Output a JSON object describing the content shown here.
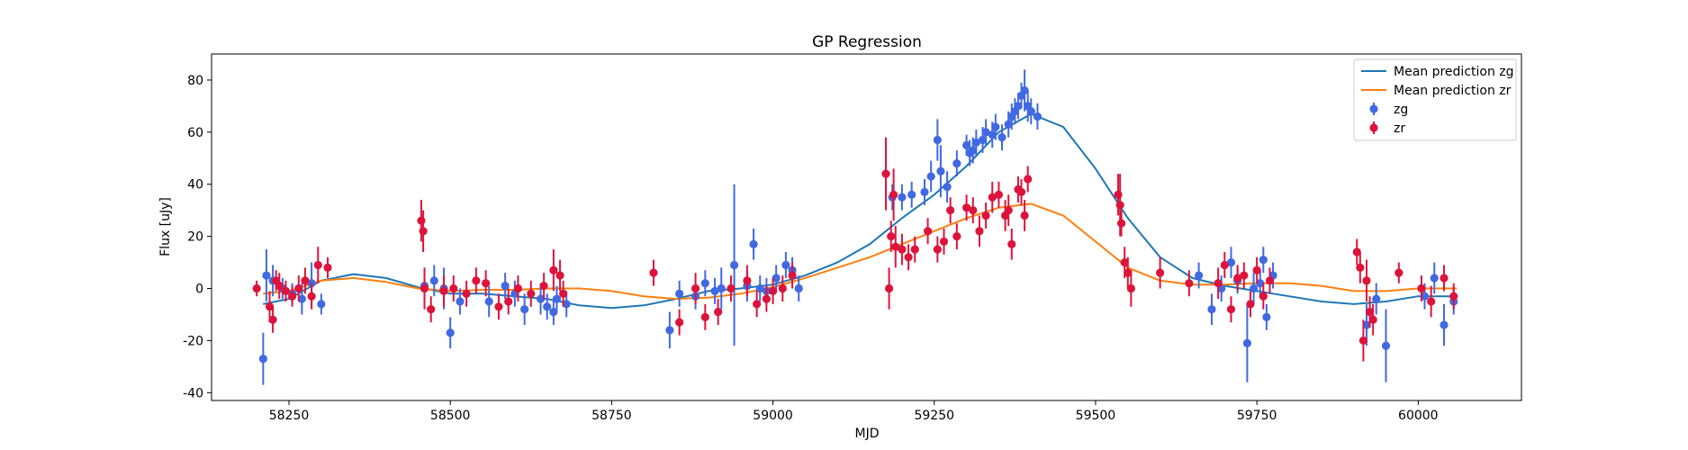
{
  "chart_data": {
    "type": "scatter",
    "title": "GP Regression",
    "xlabel": "MJD",
    "ylabel": "Flux [uJy]",
    "xlim": [
      58130,
      60160
    ],
    "ylim": [
      -43,
      90
    ],
    "xticks": [
      58250,
      58500,
      58750,
      59000,
      59250,
      59500,
      59750,
      60000
    ],
    "yticks": [
      -40,
      -20,
      0,
      20,
      40,
      60,
      80
    ],
    "grid": false,
    "legend_position": "top-right",
    "series": [
      {
        "name": "Mean prediction zg",
        "kind": "line",
        "color": "#1f77b4",
        "x": [
          58210,
          58250,
          58300,
          58350,
          58400,
          58450,
          58500,
          58550,
          58600,
          58650,
          58700,
          58750,
          58800,
          58850,
          58900,
          58950,
          59000,
          59050,
          59100,
          59150,
          59200,
          59250,
          59300,
          59350,
          59400,
          59450,
          59500,
          59550,
          59600,
          59650,
          59700,
          59750,
          59800,
          59850,
          59900,
          59950,
          60000,
          60060
        ],
        "y": [
          -6,
          -4,
          3,
          5.5,
          4,
          0.5,
          -2,
          -2,
          -3,
          -4,
          -6.5,
          -7.5,
          -6.5,
          -4,
          -1,
          0,
          1.5,
          5,
          10,
          17,
          27,
          36,
          47,
          60,
          67,
          62,
          46,
          27,
          12,
          4,
          1,
          -1,
          -3,
          -5,
          -6,
          -5,
          -3,
          -3
        ]
      },
      {
        "name": "Mean prediction zr",
        "kind": "line",
        "color": "#ff7f0e",
        "x": [
          58210,
          58250,
          58300,
          58350,
          58400,
          58450,
          58500,
          58550,
          58600,
          58650,
          58700,
          58750,
          58800,
          58850,
          58900,
          58950,
          59000,
          59050,
          59100,
          59150,
          59200,
          59250,
          59300,
          59350,
          59400,
          59450,
          59500,
          59550,
          59600,
          59650,
          59700,
          59750,
          59800,
          59850,
          59900,
          59950,
          60000,
          60060
        ],
        "y": [
          -2,
          -1,
          3,
          4,
          2.5,
          0,
          -1,
          -0.5,
          -0.5,
          0,
          0,
          -1,
          -3,
          -4,
          -3.5,
          -2,
          0.5,
          4,
          8,
          12,
          17,
          22,
          27,
          31,
          32.5,
          28,
          18,
          8,
          3,
          1.5,
          1.5,
          2,
          2,
          1,
          -1,
          -1,
          0,
          0
        ]
      },
      {
        "name": "zg",
        "kind": "errorbar",
        "color": "#4169e1",
        "x": [
          58210,
          58215,
          58225,
          58240,
          58255,
          58270,
          58285,
          58300,
          58460,
          58475,
          58490,
          58500,
          58515,
          58560,
          58585,
          58600,
          58615,
          58640,
          58650,
          58660,
          58665,
          58680,
          58840,
          58855,
          58880,
          58895,
          58910,
          58920,
          58940,
          58960,
          58970,
          58980,
          58990,
          59005,
          59020,
          59030,
          59040,
          59185,
          59200,
          59215,
          59235,
          59245,
          59255,
          59260,
          59270,
          59285,
          59300,
          59305,
          59310,
          59315,
          59325,
          59330,
          59340,
          59345,
          59355,
          59365,
          59370,
          59375,
          59380,
          59385,
          59390,
          59395,
          59400,
          59410,
          59660,
          59680,
          59695,
          59710,
          59720,
          59735,
          59745,
          59755,
          59760,
          59765,
          59775,
          59920,
          59935,
          59950,
          60010,
          60025,
          60040,
          60055
        ],
        "y": [
          -27,
          5,
          3,
          0,
          -2,
          -4,
          2,
          -6,
          1,
          3,
          0,
          -17,
          -5,
          -5,
          1,
          -2,
          -8,
          -4,
          -7,
          -9,
          -4,
          -6,
          -16,
          -2,
          -3,
          2,
          -1,
          0,
          9,
          1,
          17,
          0,
          -1,
          4,
          9,
          7,
          0,
          35,
          35,
          36,
          37,
          43,
          57,
          45,
          39,
          48,
          55,
          52,
          53,
          56,
          57,
          60,
          59,
          62,
          58,
          63,
          66,
          68,
          70,
          74,
          76,
          70,
          68,
          66,
          5,
          -8,
          0,
          10,
          3,
          -21,
          0,
          2,
          11,
          -11,
          5,
          -14,
          -4,
          -22,
          -3,
          4,
          -14,
          -5
        ],
        "yerr": [
          10,
          10,
          6,
          4,
          4,
          6,
          8,
          4,
          5,
          6,
          8,
          6,
          5,
          6,
          5,
          5,
          6,
          6,
          5,
          5,
          5,
          5,
          7,
          5,
          5,
          5,
          5,
          8,
          31,
          6,
          6,
          5,
          5,
          5,
          5,
          5,
          5,
          5,
          5,
          5,
          5,
          6,
          8,
          10,
          6,
          5,
          4,
          5,
          5,
          5,
          5,
          5,
          5,
          5,
          5,
          5,
          5,
          5,
          5,
          5,
          8,
          6,
          5,
          5,
          5,
          6,
          5,
          6,
          5,
          15,
          6,
          5,
          5,
          5,
          5,
          8,
          6,
          14,
          5,
          6,
          8,
          5
        ]
      },
      {
        "name": "zr",
        "kind": "errorbar",
        "color": "#dc143c",
        "x": [
          58200,
          58220,
          58225,
          58230,
          58235,
          58245,
          58255,
          58265,
          58275,
          58285,
          58295,
          58310,
          58455,
          58458,
          58460,
          58470,
          58490,
          58505,
          58525,
          58540,
          58555,
          58575,
          58590,
          58605,
          58625,
          58645,
          58660,
          58670,
          58675,
          58815,
          58855,
          58880,
          58895,
          58915,
          58935,
          58960,
          58975,
          58990,
          59000,
          59015,
          59030,
          59175,
          59180,
          59183,
          59187,
          59190,
          59200,
          59210,
          59220,
          59240,
          59255,
          59265,
          59275,
          59285,
          59300,
          59310,
          59320,
          59330,
          59340,
          59350,
          59360,
          59365,
          59370,
          59380,
          59385,
          59390,
          59395,
          59535,
          59538,
          59540,
          59545,
          59550,
          59555,
          59600,
          59645,
          59690,
          59700,
          59710,
          59720,
          59730,
          59740,
          59750,
          59760,
          59770,
          59905,
          59910,
          59915,
          59920,
          59925,
          59930,
          59970,
          60005,
          60020,
          60040,
          60055
        ],
        "y": [
          0,
          -7,
          -12,
          3,
          1,
          -1,
          -3,
          0,
          3,
          -3,
          9,
          8,
          26,
          22,
          0,
          -8,
          -1,
          0,
          -2,
          3,
          2,
          -7,
          -5,
          0,
          -2,
          1,
          7,
          5,
          -2,
          6,
          -13,
          0,
          -11,
          -9,
          0,
          3,
          -6,
          -4,
          -1,
          0,
          5,
          44,
          0,
          20,
          36,
          16,
          15,
          12,
          15,
          22,
          15,
          18,
          30,
          20,
          31,
          30,
          22,
          28,
          35,
          36,
          28,
          30,
          17,
          38,
          37,
          28,
          42,
          36,
          32,
          25,
          10,
          6,
          0,
          6,
          2,
          2,
          9,
          -8,
          4,
          5,
          -6,
          7,
          -3,
          3,
          14,
          8,
          -20,
          3,
          -9,
          -12,
          6,
          0,
          -5,
          4,
          -3
        ],
        "yerr": [
          3,
          6,
          5,
          4,
          5,
          4,
          4,
          5,
          5,
          5,
          7,
          4,
          8,
          8,
          8,
          5,
          6,
          5,
          5,
          5,
          5,
          5,
          5,
          5,
          5,
          5,
          8,
          6,
          5,
          5,
          5,
          6,
          5,
          5,
          5,
          6,
          5,
          5,
          5,
          5,
          5,
          14,
          8,
          6,
          10,
          8,
          6,
          5,
          5,
          5,
          5,
          5,
          5,
          5,
          5,
          5,
          6,
          5,
          6,
          5,
          6,
          6,
          6,
          5,
          5,
          6,
          5,
          8,
          12,
          5,
          6,
          6,
          7,
          6,
          5,
          6,
          5,
          5,
          5,
          5,
          5,
          5,
          5,
          5,
          5,
          6,
          8,
          8,
          6,
          6,
          4,
          5,
          6,
          5,
          5
        ]
      }
    ]
  }
}
